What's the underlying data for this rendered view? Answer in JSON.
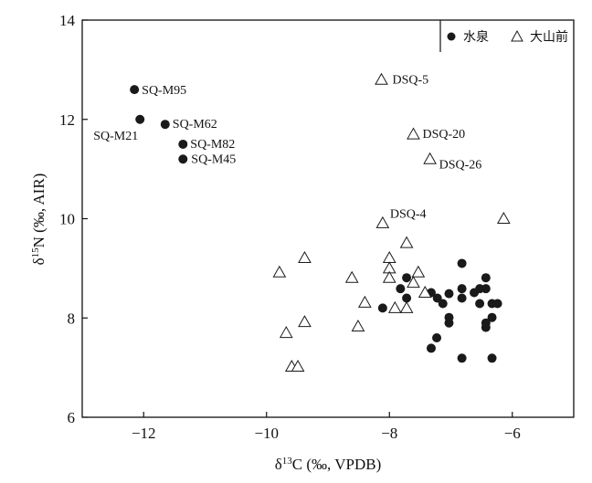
{
  "chart_data": {
    "type": "scatter",
    "title": "",
    "xlabel": {
      "prefix": "δ",
      "sup": "13",
      "rest": "C (‰, VPDB)"
    },
    "ylabel": {
      "prefix": "δ",
      "sup": "15",
      "rest": "N (‰, AIR)"
    },
    "xlim": [
      -13,
      -5
    ],
    "ylim": [
      6,
      14
    ],
    "xticks": [
      -12,
      -10,
      -8,
      -6
    ],
    "yticks": [
      6,
      8,
      10,
      12,
      14
    ],
    "xtick_labels": [
      "−12",
      "−10",
      "−8",
      "−6"
    ],
    "ytick_labels": [
      "6",
      "8",
      "10",
      "12",
      "14"
    ],
    "grid": false,
    "legend_position": "top-right",
    "series": [
      {
        "name": "水泉",
        "marker": "filled-circle",
        "color": "#1a1a1a",
        "points": [
          {
            "x": -12.15,
            "y": 12.6,
            "label": "SQ-M95"
          },
          {
            "x": -12.06,
            "y": 12.0,
            "label": "SQ-M21"
          },
          {
            "x": -11.65,
            "y": 11.9,
            "label": "SQ-M62"
          },
          {
            "x": -11.36,
            "y": 11.5,
            "label": "SQ-M82"
          },
          {
            "x": -11.36,
            "y": 11.2,
            "label": "SQ-M45"
          },
          {
            "x": -6.82,
            "y": 9.1
          },
          {
            "x": -7.72,
            "y": 8.81
          },
          {
            "x": -7.82,
            "y": 8.59
          },
          {
            "x": -7.72,
            "y": 8.4
          },
          {
            "x": -8.11,
            "y": 8.2
          },
          {
            "x": -7.32,
            "y": 8.51
          },
          {
            "x": -7.22,
            "y": 8.4
          },
          {
            "x": -7.13,
            "y": 8.29
          },
          {
            "x": -7.03,
            "y": 8.49
          },
          {
            "x": -6.82,
            "y": 8.59
          },
          {
            "x": -6.82,
            "y": 8.4
          },
          {
            "x": -6.62,
            "y": 8.51
          },
          {
            "x": -6.53,
            "y": 8.59
          },
          {
            "x": -6.43,
            "y": 8.81
          },
          {
            "x": -6.43,
            "y": 8.59
          },
          {
            "x": -6.53,
            "y": 8.29
          },
          {
            "x": -6.33,
            "y": 8.29
          },
          {
            "x": -6.24,
            "y": 8.29
          },
          {
            "x": -7.03,
            "y": 8.01
          },
          {
            "x": -7.03,
            "y": 7.9
          },
          {
            "x": -6.33,
            "y": 8.01
          },
          {
            "x": -6.43,
            "y": 7.9
          },
          {
            "x": -6.43,
            "y": 7.81
          },
          {
            "x": -7.23,
            "y": 7.6
          },
          {
            "x": -7.32,
            "y": 7.39
          },
          {
            "x": -6.82,
            "y": 7.19
          },
          {
            "x": -6.33,
            "y": 7.19
          }
        ]
      },
      {
        "name": "大山前",
        "marker": "open-triangle",
        "color": "#1a1a1a",
        "points": [
          {
            "x": -8.13,
            "y": 12.8,
            "label": "DSQ-5"
          },
          {
            "x": -7.61,
            "y": 11.7,
            "label": "DSQ-20"
          },
          {
            "x": -7.34,
            "y": 11.2,
            "label": "DSQ-26"
          },
          {
            "x": -8.11,
            "y": 9.91,
            "label": "DSQ-4"
          },
          {
            "x": -6.14,
            "y": 10.0
          },
          {
            "x": -7.72,
            "y": 9.51
          },
          {
            "x": -9.38,
            "y": 9.21
          },
          {
            "x": -9.79,
            "y": 8.92
          },
          {
            "x": -8.61,
            "y": 8.81
          },
          {
            "x": -8.0,
            "y": 9.21
          },
          {
            "x": -8.0,
            "y": 9.0
          },
          {
            "x": -8.0,
            "y": 8.81
          },
          {
            "x": -7.53,
            "y": 8.92
          },
          {
            "x": -7.61,
            "y": 8.71
          },
          {
            "x": -7.42,
            "y": 8.51
          },
          {
            "x": -8.4,
            "y": 8.31
          },
          {
            "x": -7.91,
            "y": 8.2
          },
          {
            "x": -7.72,
            "y": 8.2
          },
          {
            "x": -9.38,
            "y": 7.92
          },
          {
            "x": -8.51,
            "y": 7.83
          },
          {
            "x": -9.68,
            "y": 7.7
          },
          {
            "x": -9.59,
            "y": 7.02
          },
          {
            "x": -9.49,
            "y": 7.02
          }
        ]
      }
    ]
  }
}
